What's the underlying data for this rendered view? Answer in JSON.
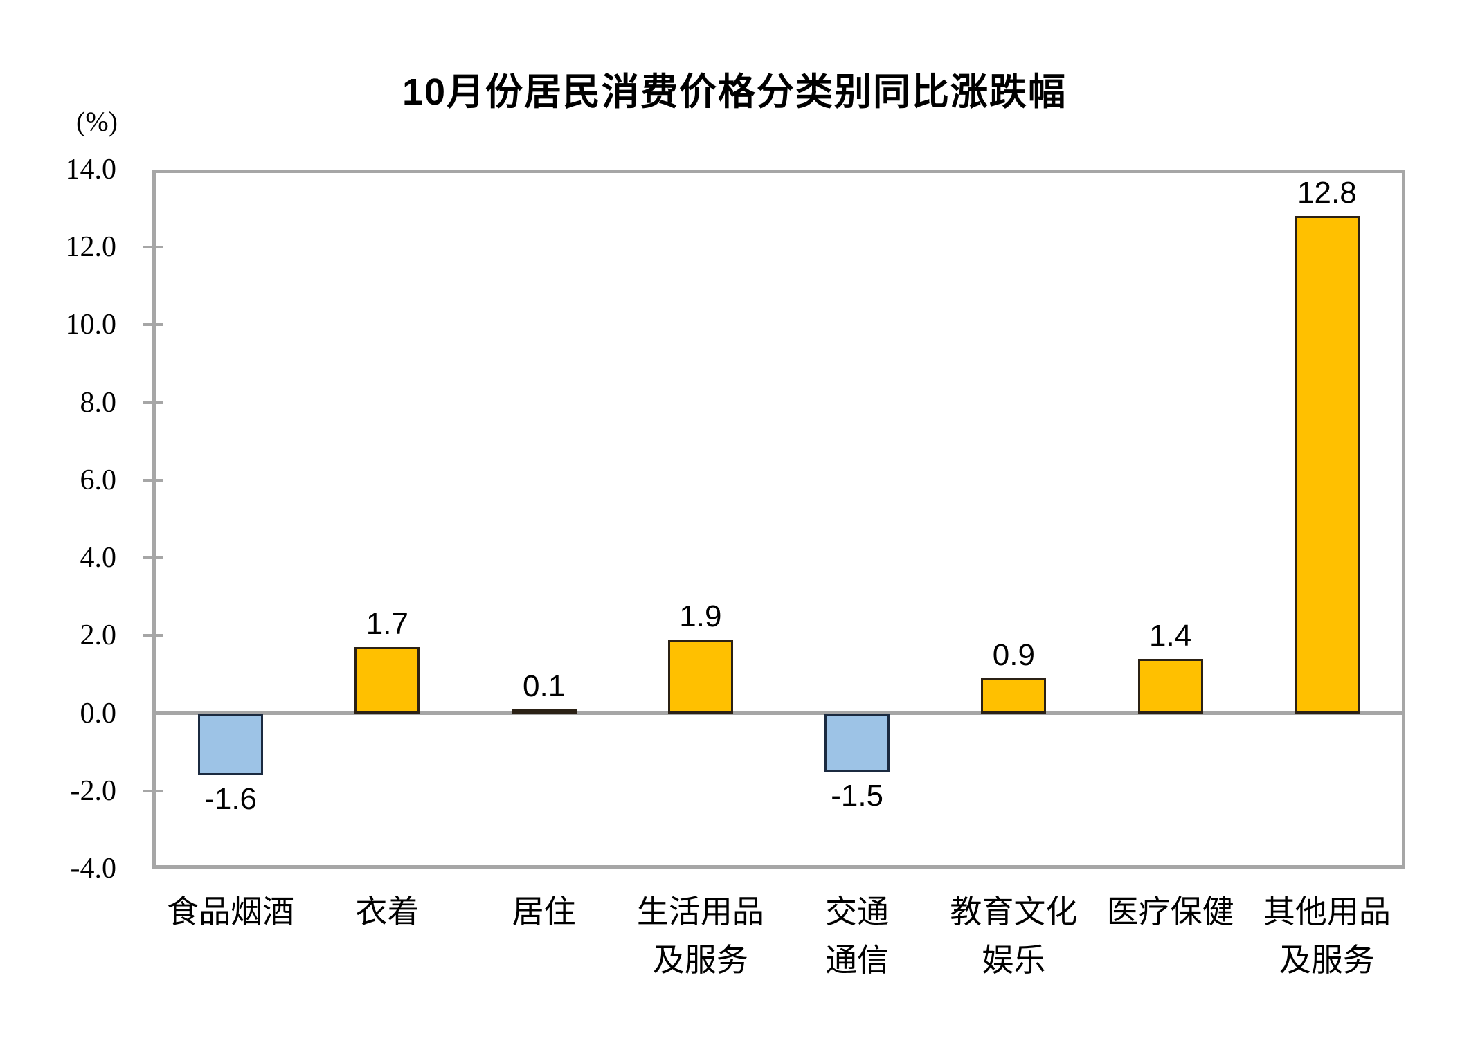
{
  "title": "10月份居民消费价格分类别同比涨跌幅",
  "unit_label": "(%)",
  "chart_data": {
    "type": "bar",
    "title": "10月份居民消费价格分类别同比涨跌幅",
    "xlabel": "",
    "ylabel": "(%)",
    "ylim": [
      -4.0,
      14.0
    ],
    "ytick_step": 2.0,
    "ytick_labels": [
      "14.0",
      "12.0",
      "10.0",
      "8.0",
      "6.0",
      "4.0",
      "2.0",
      "0.0",
      "-2.0",
      "-4.0"
    ],
    "grid": false,
    "legend": false,
    "categories": [
      "食品烟酒",
      "衣着",
      "居住",
      "生活用品\n及服务",
      "交通\n通信",
      "教育文化\n娱乐",
      "医疗保健",
      "其他用品\n及服务"
    ],
    "values": [
      -1.6,
      1.7,
      0.1,
      1.9,
      -1.5,
      0.9,
      1.4,
      12.8
    ],
    "data_labels": [
      "-1.6",
      "1.7",
      "0.1",
      "1.9",
      "-1.5",
      "0.9",
      "1.4",
      "12.8"
    ],
    "colors": {
      "positive_fill": "#FFC000",
      "positive_border": "#2B2115",
      "negative_fill": "#9DC3E6",
      "negative_border": "#1B2A40",
      "axis": "#A6A6A6",
      "text": "#000000"
    }
  }
}
